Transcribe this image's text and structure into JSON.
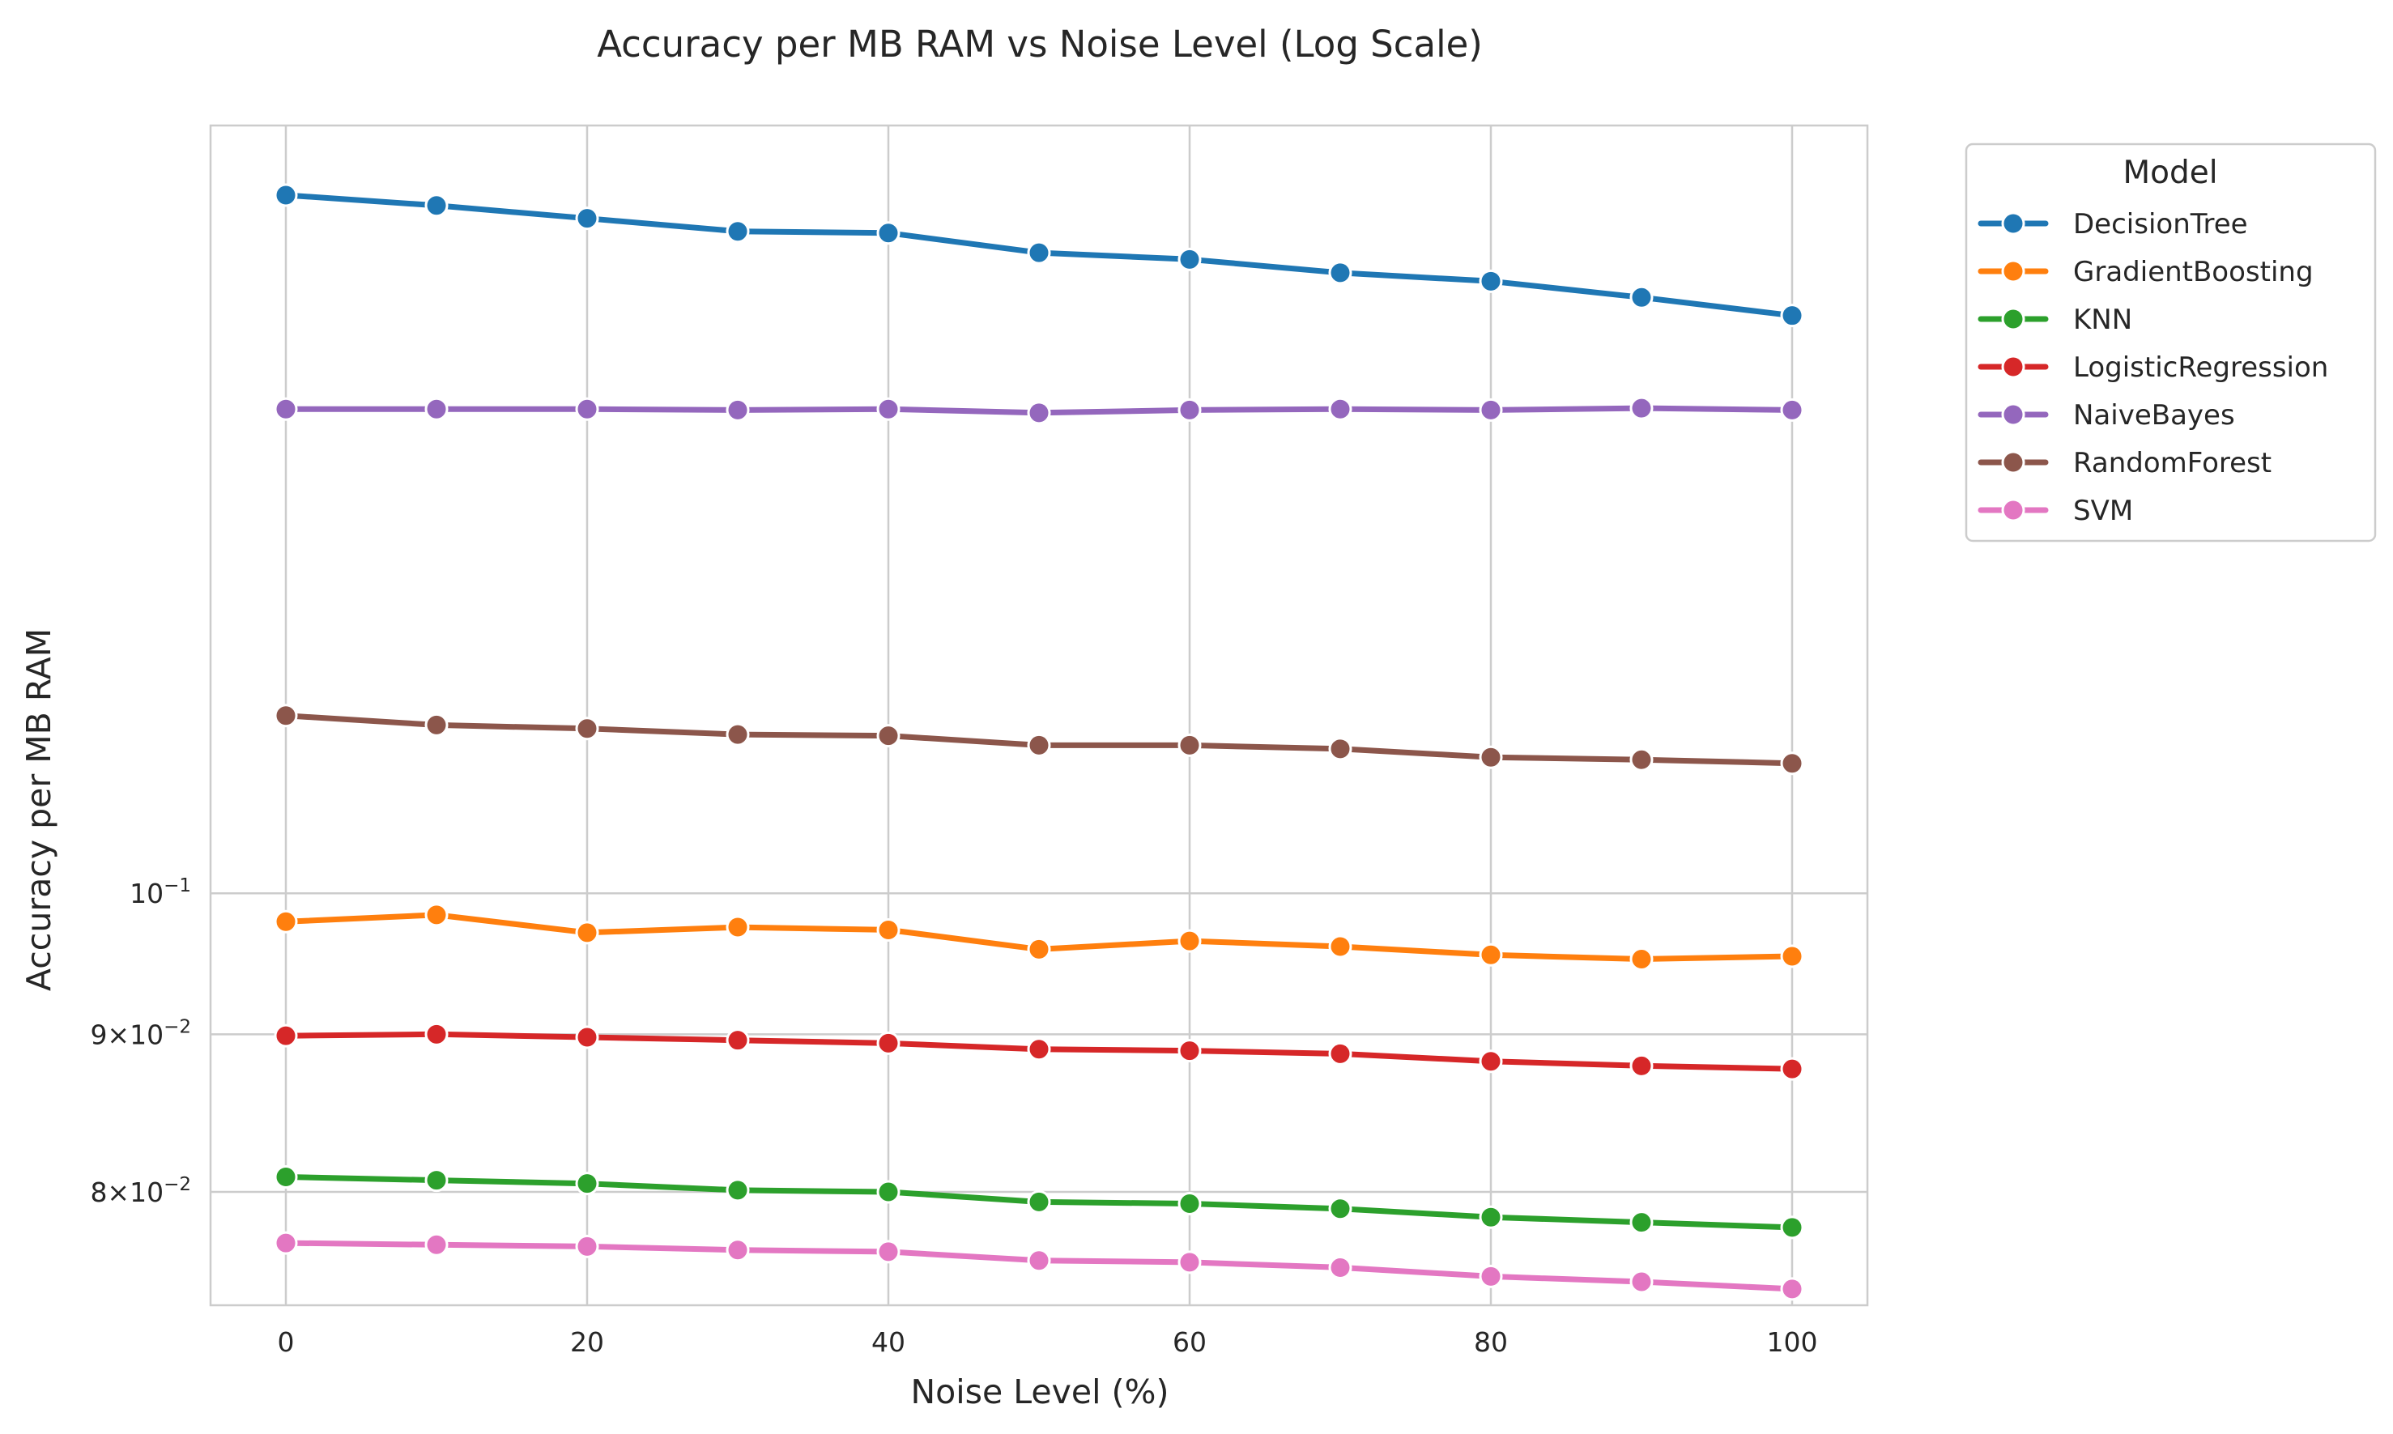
{
  "chart_data": {
    "type": "line",
    "title": "Accuracy per MB RAM vs Noise Level (Log Scale)",
    "xlabel": "Noise Level (%)",
    "ylabel": "Accuracy per MB RAM",
    "yscale": "log",
    "xlim": [
      -5,
      105
    ],
    "ylim": [
      0.0735,
      0.1775
    ],
    "grid": true,
    "x": [
      0,
      10,
      20,
      30,
      40,
      50,
      60,
      70,
      80,
      90,
      100
    ],
    "x_ticks": [
      {
        "value": 0,
        "label": "0"
      },
      {
        "value": 20,
        "label": "20"
      },
      {
        "value": 40,
        "label": "40"
      },
      {
        "value": 60,
        "label": "60"
      },
      {
        "value": 80,
        "label": "80"
      },
      {
        "value": 100,
        "label": "100"
      }
    ],
    "y_ticks": [
      {
        "value": 0.1,
        "mantissa": "",
        "base": "10",
        "exp": "−1"
      },
      {
        "value": 0.09,
        "mantissa": "9×",
        "base": "10",
        "exp": "−2"
      },
      {
        "value": 0.08,
        "mantissa": "8×",
        "base": "10",
        "exp": "−2"
      }
    ],
    "legend": {
      "title": "Model",
      "position": "outside-upper-right"
    },
    "series": [
      {
        "name": "DecisionTree",
        "color": "#1f77b4",
        "values": [
          0.1685,
          0.1672,
          0.1656,
          0.164,
          0.1638,
          0.1614,
          0.1606,
          0.159,
          0.158,
          0.1561,
          0.154
        ]
      },
      {
        "name": "GradientBoosting",
        "color": "#ff7f0e",
        "values": [
          0.0979,
          0.0984,
          0.0971,
          0.0975,
          0.0973,
          0.0959,
          0.0965,
          0.0961,
          0.0955,
          0.0952,
          0.0954
        ]
      },
      {
        "name": "KNN",
        "color": "#2ca02c",
        "values": [
          0.0809,
          0.0807,
          0.0805,
          0.0801,
          0.08,
          0.0794,
          0.0793,
          0.079,
          0.0785,
          0.0782,
          0.0779
        ]
      },
      {
        "name": "LogisticRegression",
        "color": "#d62728",
        "values": [
          0.0899,
          0.09,
          0.0898,
          0.0896,
          0.0894,
          0.089,
          0.0889,
          0.0887,
          0.0882,
          0.0879,
          0.0877
        ]
      },
      {
        "name": "NaiveBayes",
        "color": "#9467bd",
        "values": [
          0.1436,
          0.1436,
          0.1436,
          0.1435,
          0.1436,
          0.1432,
          0.1435,
          0.1436,
          0.1435,
          0.1437,
          0.1435
        ]
      },
      {
        "name": "RandomForest",
        "color": "#8c564b",
        "values": [
          0.1142,
          0.1134,
          0.1131,
          0.1126,
          0.1125,
          0.1117,
          0.1117,
          0.1114,
          0.1107,
          0.1105,
          0.1102
        ]
      },
      {
        "name": "SVM",
        "color": "#e377c2",
        "values": [
          0.077,
          0.0769,
          0.0768,
          0.0766,
          0.0765,
          0.076,
          0.0759,
          0.0756,
          0.0751,
          0.0748,
          0.0744
        ]
      }
    ]
  }
}
